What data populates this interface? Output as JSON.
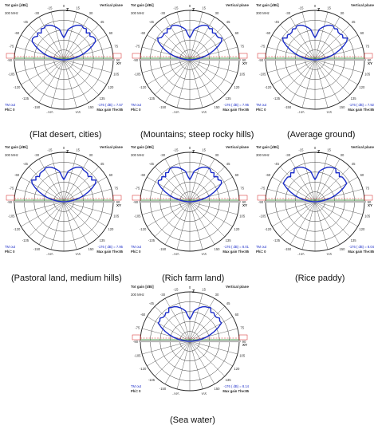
{
  "common": {
    "title_left": "Tot gain [dBi]",
    "title_right": "Vertical plane",
    "frequency": "300 MHz",
    "bottom_left_1": "TM out",
    "bottom_left_2": "Phi= 0",
    "bottom_right_2": "Max gain The:85",
    "angle_labels": [
      "0",
      "15",
      "30",
      "45",
      "60",
      "75",
      "90",
      "105",
      "120",
      "135",
      "150",
      "165",
      "180",
      "-165",
      "-150",
      "-135",
      "-120",
      "-105",
      "-90",
      "-75",
      "-60",
      "-45",
      "-30",
      "-15"
    ],
    "z_label": "Z",
    "xy_label": "XY",
    "colors": {
      "pattern": "#1a2bc8",
      "ground": "#b8b8b8",
      "x_axis": "#2a8a2a",
      "red_marks": "#d62020",
      "grid": "#222222",
      "title": "#2a2a2a",
      "note": "#1a2bc8"
    }
  },
  "panels": [
    {
      "caption": "(Flat desert, cities)",
      "gain_note": "-176 ( dB) = 7.57"
    },
    {
      "caption": "(Mountains; steep rocky hills)",
      "gain_note": "-176 ( dB) = 7.95"
    },
    {
      "caption": "(Average ground)",
      "gain_note": "-176 ( dB) = 7.92"
    },
    {
      "caption": "(Pastoral land, medium hills)",
      "gain_note": "-176 ( dB) = 7.95"
    },
    {
      "caption": "(Rich farm land)",
      "gain_note": "-176 ( dB) = 8.01"
    },
    {
      "caption": "(Rice paddy)",
      "gain_note": "-176 ( dB) = 8.04"
    },
    {
      "caption": "(Sea water)",
      "gain_note": "-176 ( dB) = 8.14"
    }
  ]
}
